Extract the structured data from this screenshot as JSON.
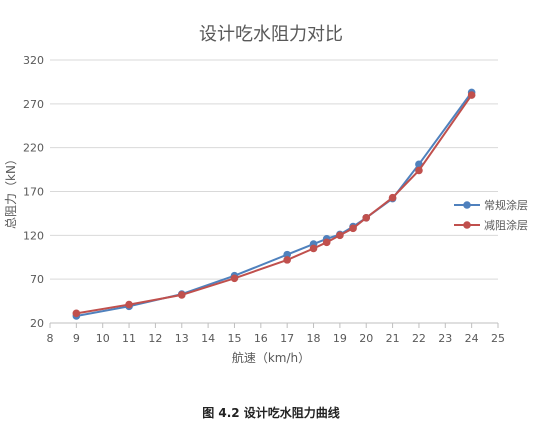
{
  "chart_data": {
    "type": "line",
    "title": "设计吃水阻力对比",
    "xlabel": "航速（km/h）",
    "ylabel": "总阻力（kN）",
    "xlim": [
      8,
      25
    ],
    "ylim": [
      20,
      320
    ],
    "xticks": [
      "8",
      "9",
      "10",
      "11",
      "12",
      "13",
      "14",
      "15",
      "16",
      "17",
      "18",
      "19",
      "20",
      "21",
      "22",
      "23",
      "24",
      "25"
    ],
    "yticks": [
      "20",
      "70",
      "120",
      "170",
      "220",
      "270",
      "320"
    ],
    "grid": true,
    "legend_position": "right",
    "series": [
      {
        "name": "常规涂层",
        "color": "#4f81bd",
        "points": [
          [
            9,
            28
          ],
          [
            11,
            39
          ],
          [
            13,
            53
          ],
          [
            15,
            74
          ],
          [
            17,
            98
          ],
          [
            18,
            110
          ],
          [
            18.5,
            116
          ],
          [
            19,
            121
          ],
          [
            19.5,
            130
          ],
          [
            20,
            140
          ],
          [
            21,
            162
          ],
          [
            22,
            201
          ],
          [
            24,
            283
          ]
        ]
      },
      {
        "name": "减阻涂层",
        "color": "#c0504d",
        "points": [
          [
            9,
            31
          ],
          [
            11,
            41
          ],
          [
            13,
            52
          ],
          [
            15,
            71
          ],
          [
            17,
            92
          ],
          [
            18,
            105
          ],
          [
            18.5,
            112
          ],
          [
            19,
            120
          ],
          [
            19.5,
            128
          ],
          [
            20,
            140
          ],
          [
            21,
            163
          ],
          [
            22,
            194
          ],
          [
            24,
            280
          ]
        ]
      }
    ]
  },
  "caption": "图 4.2 设计吃水阻力曲线"
}
